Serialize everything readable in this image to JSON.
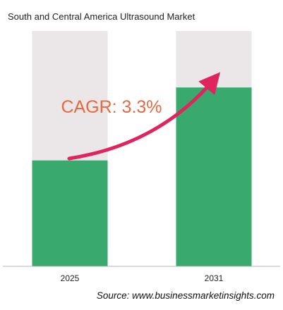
{
  "title": "South and Central America Ultrasound Market",
  "source": "Source: www.businessmarketinsights.com",
  "annotation": "CAGR: 3.3%",
  "colors": {
    "bar": "#3aa96d",
    "track": "#ebe6e8",
    "arrow": "#e0245e",
    "annotation": "#e8693f",
    "axis": "#b5b5b5"
  },
  "chart_data": {
    "type": "bar",
    "title": "South and Central America Ultrasound Market",
    "categories": [
      "2025",
      "2031"
    ],
    "series": [
      {
        "values": [
          0.45,
          0.76
        ]
      }
    ],
    "value_scale": "relative (fraction of full bar track, no numeric axis shown)",
    "annotations": [
      "CAGR: 3.3%"
    ],
    "xlabel": "",
    "ylabel": "",
    "grid": false,
    "legend": "none"
  }
}
